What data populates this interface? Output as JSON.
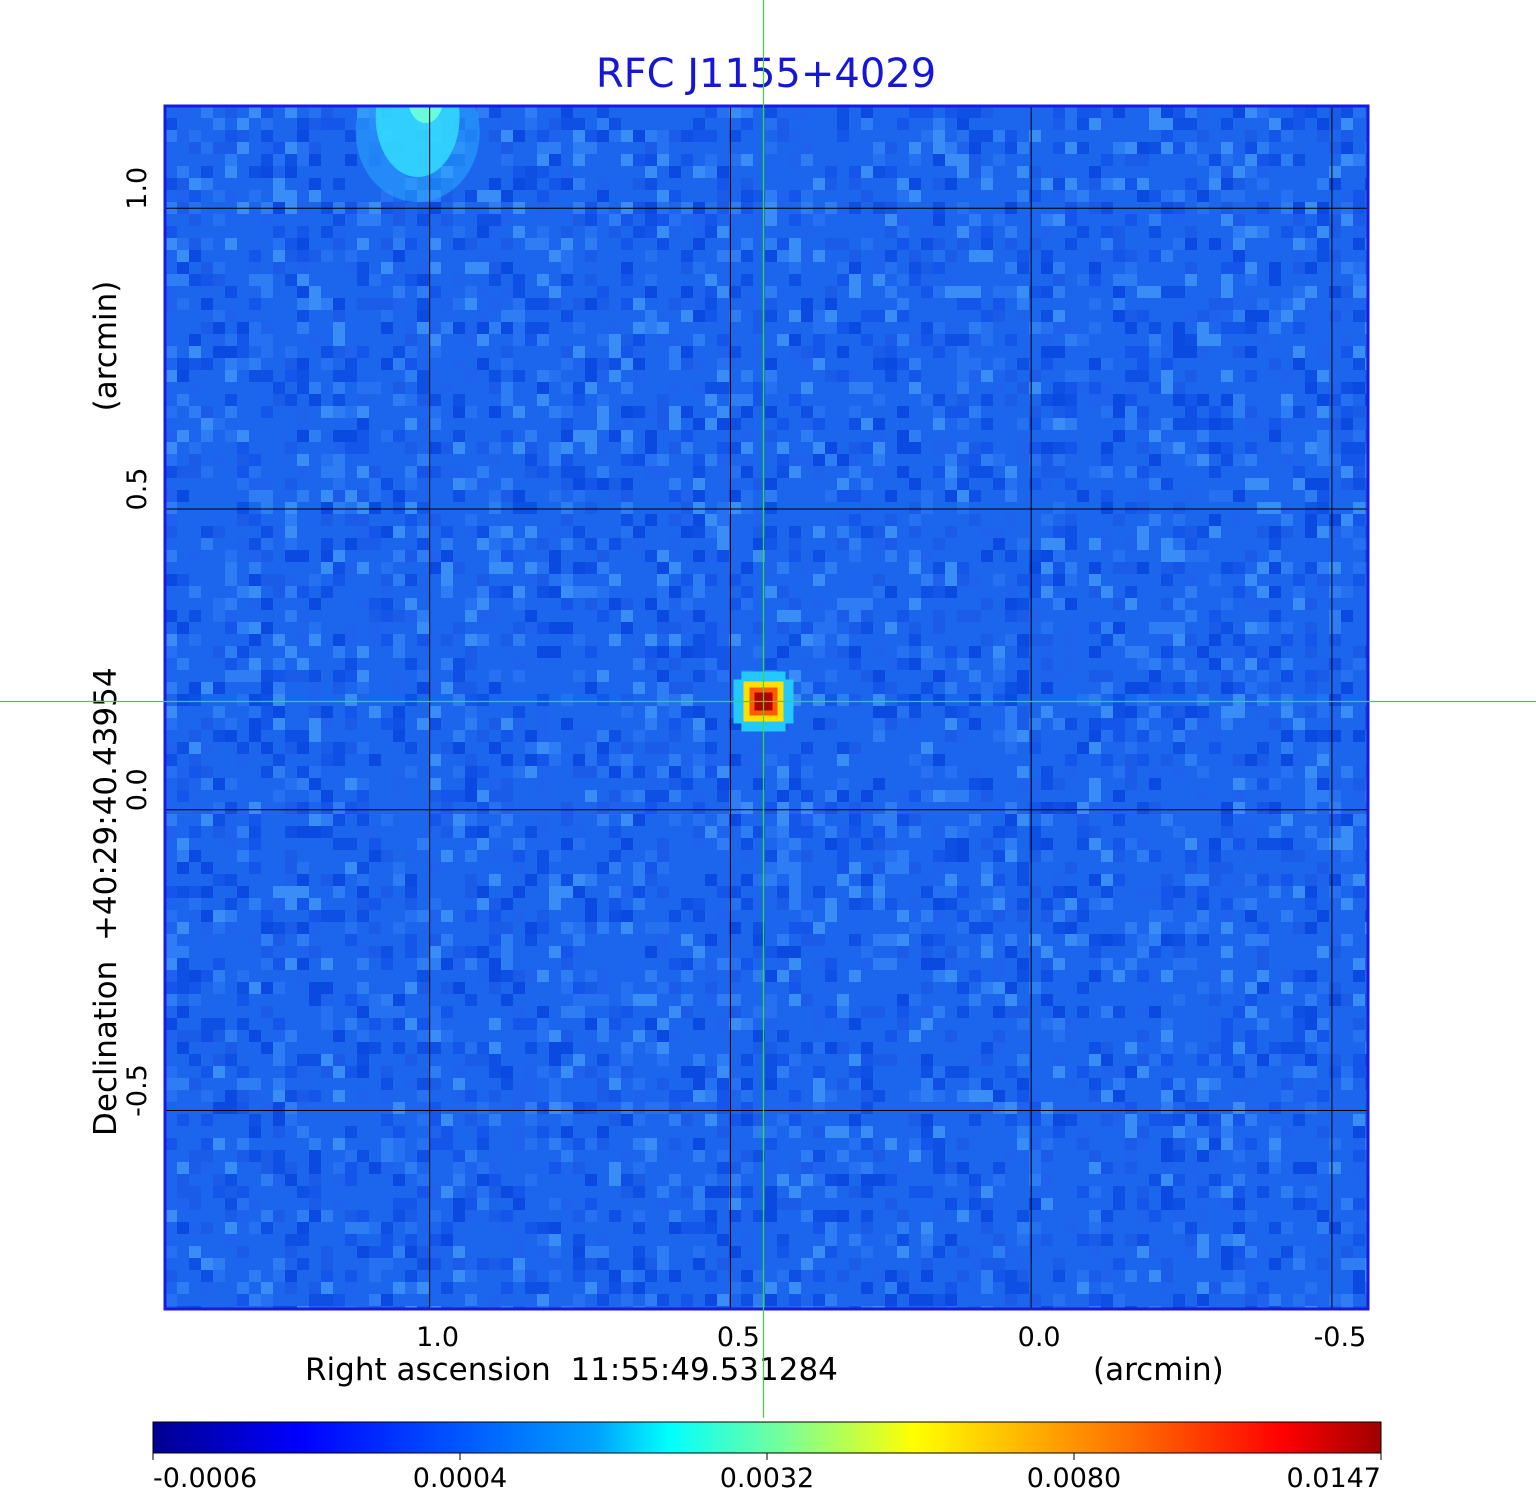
{
  "chart_data": {
    "type": "heatmap",
    "title": "RFC J1155+4029",
    "xlabel": "Right ascension  11:55:49.531284",
    "xunit": "(arcmin)",
    "ylabel": "Declination  +40:29:40.43954",
    "yunit": "(arcmin)",
    "xlim": [
      1.44,
      -0.56
    ],
    "ylim": [
      -0.83,
      1.17
    ],
    "x_ticks": [
      {
        "value": 1.0,
        "label": "1.0"
      },
      {
        "value": 0.5,
        "label": "0.5"
      },
      {
        "value": 0.0,
        "label": "0.0"
      },
      {
        "value": -0.5,
        "label": "-0.5"
      }
    ],
    "y_ticks": [
      {
        "value": 1.0,
        "label": "1.0"
      },
      {
        "value": 0.5,
        "label": "0.5"
      },
      {
        "value": 0.0,
        "label": "0.0"
      },
      {
        "value": -0.5,
        "label": "-0.5"
      }
    ],
    "grid": true,
    "crosshair": {
      "x": 0.445,
      "y": 0.18
    },
    "sources": [
      {
        "x": 0.445,
        "y": 0.18,
        "peak": 0.0147
      },
      {
        "x": 1.02,
        "y": 1.11,
        "peak": 0.0025
      }
    ],
    "colorbar": {
      "ticks": [
        "-0.0006",
        "0.0004",
        "0.0032",
        "0.0080",
        "0.0147"
      ],
      "colormap": "jet"
    },
    "colors": {
      "title": "#1616d6",
      "frame": "#1a1ae0",
      "crosshair": "#33dd33",
      "grid": "#000000"
    }
  }
}
